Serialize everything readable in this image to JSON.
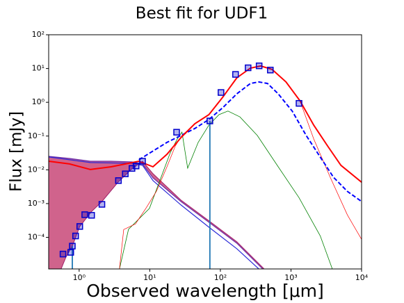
{
  "chart_data": {
    "type": "line",
    "title": "Best fit for UDF1",
    "xlabel": "Observed wavelength [μm]",
    "ylabel": "Flux [mJy]",
    "xscale": "log",
    "yscale": "log",
    "xlim": [
      0.37,
      10000
    ],
    "ylim": [
      1.16e-05,
      100
    ],
    "xticks": [
      {
        "value": 1,
        "label": "10⁰"
      },
      {
        "value": 10,
        "label": "10¹"
      },
      {
        "value": 100,
        "label": "10²"
      },
      {
        "value": 1000,
        "label": "10³"
      },
      {
        "value": 10000,
        "label": "10⁴"
      }
    ],
    "yticks": [
      {
        "value": 0.0001,
        "label": "10⁻⁴"
      },
      {
        "value": 0.001,
        "label": "10⁻³"
      },
      {
        "value": 0.01,
        "label": "10⁻²"
      },
      {
        "value": 0.1,
        "label": "10⁻¹"
      },
      {
        "value": 1,
        "label": "10⁰"
      },
      {
        "value": 10,
        "label": "10¹"
      },
      {
        "value": 100,
        "label": "10²"
      }
    ],
    "fill": {
      "color": "#c84878",
      "between": [
        0,
        2
      ]
    },
    "series": [
      {
        "color": "#6a2ca8",
        "width": 1.2,
        "x": [
          0.37,
          0.73,
          1.44,
          2.84,
          5.6,
          7.9,
          11.1,
          27.6,
          68.7,
          171,
          398
        ],
        "values": [
          0.025,
          0.0217,
          0.018,
          0.018,
          0.0171,
          0.0148,
          0.0058,
          0.00115,
          0.00028,
          6.7e-05,
          1.16e-05
        ]
      },
      {
        "color": "#2a2ad8",
        "width": 1.2,
        "x": [
          0.37,
          1.44,
          5.6,
          7.9,
          11.1,
          27.6,
          68.7,
          171,
          350
        ],
        "values": [
          0.024,
          0.0164,
          0.0156,
          0.0136,
          0.0048,
          0.00091,
          0.0002,
          4.6e-05,
          1.16e-05
        ]
      },
      {
        "color": "#a0206a",
        "width": 1,
        "x": [
          0.555,
          0.65,
          0.8,
          1.02,
          1.5,
          2.1,
          3.56,
          5.6,
          7.9,
          11.1,
          27.6,
          68.7,
          171,
          417
        ],
        "values": [
          1.16e-05,
          2.6e-05,
          5.5e-05,
          0.00021,
          0.00058,
          0.00115,
          0.0043,
          0.0107,
          0.018,
          0.0077,
          0.00127,
          0.00031,
          7.4e-05,
          1.16e-05
        ]
      },
      {
        "color": "#008000",
        "width": 0.8,
        "x": [
          3.72,
          5.0,
          9.9,
          13.9,
          19.5,
          24.5,
          28.6,
          34.4,
          48.5,
          68.7,
          95.5,
          128,
          189,
          333,
          660,
          1300,
          2600,
          3850
        ],
        "values": [
          1.16e-05,
          0.000173,
          0.00072,
          0.0048,
          0.0318,
          0.082,
          0.131,
          0.0112,
          0.065,
          0.21,
          0.43,
          0.55,
          0.37,
          0.104,
          0.0123,
          0.0015,
          0.00011,
          1.16e-05
        ]
      },
      {
        "color": "#ff0000",
        "width": 0.7,
        "x": [
          3.72,
          4.27,
          6.27,
          8.8,
          12.4,
          17.5,
          23,
          28.6,
          43.5,
          68.7,
          108,
          171,
          266,
          372,
          540,
          850,
          1340,
          2100,
          3600,
          6300,
          10000
        ],
        "values": [
          1.16e-05,
          0.00017,
          0.00025,
          0.00072,
          0.0023,
          0.0123,
          0.051,
          0.104,
          0.232,
          0.43,
          1.41,
          5.3,
          10.3,
          11.9,
          9.4,
          4.0,
          1.11,
          0.082,
          0.006,
          0.00046,
          8.7e-05
        ]
      },
      {
        "color": "#0000ff",
        "width": 2,
        "dash": true,
        "x": [
          7.0,
          17.5,
          27.6,
          43.5,
          68.7,
          108,
          171,
          266,
          350,
          465,
          660,
          1040,
          1640,
          2560,
          4000,
          6300,
          10000
        ],
        "values": [
          0.0198,
          0.065,
          0.104,
          0.167,
          0.31,
          0.69,
          1.78,
          3.6,
          4.0,
          3.6,
          1.78,
          0.55,
          0.104,
          0.025,
          0.006,
          0.0023,
          0.00115
        ]
      },
      {
        "color": "#ff0000",
        "width": 2,
        "x": [
          0.37,
          0.73,
          1.44,
          2.84,
          7.0,
          11.1,
          17.5,
          27.6,
          43.5,
          68.7,
          108,
          171,
          266,
          372,
          540,
          850,
          1340,
          2100,
          3300,
          5100,
          10000
        ],
        "values": [
          0.018,
          0.0149,
          0.0102,
          0.0123,
          0.018,
          0.0123,
          0.0289,
          0.09,
          0.232,
          0.43,
          1.41,
          5.3,
          10.3,
          11.9,
          9.4,
          4.0,
          1.11,
          0.21,
          0.051,
          0.0136,
          0.0043
        ]
      }
    ],
    "vlines": {
      "color": "#1f77b4",
      "x": [
        0.8,
        71
      ],
      "values": [
        5.5e-05,
        0.28
      ]
    },
    "observed": {
      "color": "#0000cc",
      "x": [
        0.59,
        0.76,
        0.8,
        0.89,
        1.02,
        1.2,
        1.5,
        2.1,
        3.6,
        4.5,
        5.6,
        6.4,
        7.9,
        24,
        71,
        102,
        164,
        247,
        354,
        510,
        1300
      ],
      "values": [
        3.2e-05,
        3.6e-05,
        5.5e-05,
        0.00011,
        0.00021,
        0.00047,
        0.00045,
        0.00095,
        0.0048,
        0.0076,
        0.011,
        0.013,
        0.018,
        0.13,
        0.28,
        1.95,
        6.7,
        10.5,
        12,
        9,
        0.93
      ]
    }
  }
}
